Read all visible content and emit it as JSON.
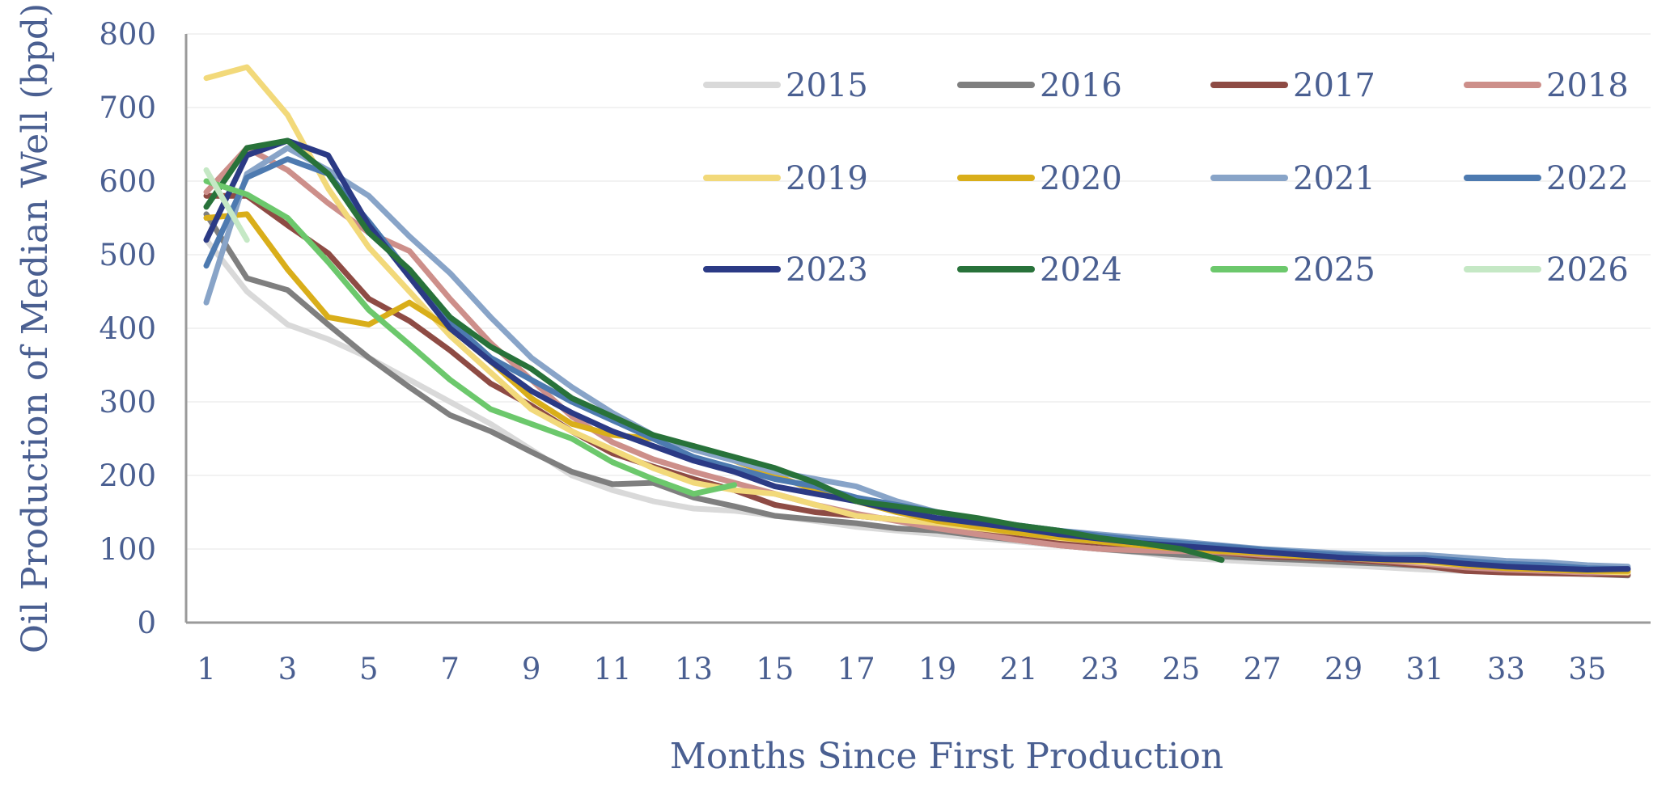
{
  "chart_data": {
    "type": "line",
    "xlabel": "Months Since First Production",
    "ylabel": "Oil Production of Median Well (bpd)",
    "xlim": [
      1,
      36
    ],
    "ylim": [
      0,
      800
    ],
    "x_ticks": [
      1,
      3,
      5,
      7,
      9,
      11,
      13,
      15,
      17,
      19,
      21,
      23,
      25,
      27,
      29,
      31,
      33,
      35
    ],
    "y_ticks": [
      0,
      100,
      200,
      300,
      400,
      500,
      600,
      700,
      800
    ],
    "grid": "horizontal",
    "legend_position": "top-right",
    "series": [
      {
        "name": "2015",
        "color": "#d9d9d9",
        "values": [
          520,
          450,
          405,
          385,
          360,
          330,
          300,
          270,
          235,
          200,
          180,
          165,
          155,
          152,
          145,
          138,
          130,
          125,
          120,
          115,
          110,
          105,
          100,
          95,
          88,
          85,
          82,
          80,
          78,
          75,
          72,
          70,
          68,
          67,
          66,
          65
        ]
      },
      {
        "name": "2016",
        "color": "#7f7f7f",
        "values": [
          555,
          468,
          452,
          405,
          360,
          320,
          282,
          260,
          232,
          205,
          188,
          190,
          170,
          158,
          145,
          140,
          135,
          128,
          125,
          118,
          112,
          105,
          100,
          96,
          92,
          90,
          87,
          85,
          82,
          80,
          77,
          72,
          70,
          68,
          66,
          64
        ]
      },
      {
        "name": "2017",
        "color": "#8e4b44",
        "values": [
          580,
          580,
          540,
          502,
          440,
          410,
          370,
          325,
          295,
          260,
          230,
          212,
          195,
          180,
          160,
          150,
          145,
          140,
          132,
          125,
          118,
          112,
          108,
          104,
          98,
          95,
          90,
          88,
          86,
          82,
          77,
          70,
          68,
          67,
          66,
          65
        ]
      },
      {
        "name": "2018",
        "color": "#cd8f8a",
        "values": [
          585,
          645,
          615,
          570,
          530,
          505,
          440,
          380,
          330,
          280,
          245,
          222,
          205,
          190,
          175,
          160,
          148,
          138,
          128,
          120,
          112,
          105,
          100,
          98,
          97,
          96,
          92,
          90,
          88,
          84,
          80,
          75,
          72,
          70,
          68,
          68
        ]
      },
      {
        "name": "2019",
        "color": "#f2d97a",
        "values": [
          740,
          755,
          690,
          590,
          510,
          450,
          390,
          340,
          290,
          260,
          235,
          210,
          190,
          180,
          175,
          160,
          145,
          140,
          135,
          128,
          122,
          115,
          110,
          106,
          102,
          98,
          95,
          92,
          88,
          86,
          82,
          78,
          75,
          72,
          70,
          68
        ]
      },
      {
        "name": "2020",
        "color": "#d9ae1a",
        "values": [
          550,
          555,
          480,
          415,
          405,
          435,
          400,
          355,
          305,
          270,
          255,
          250,
          240,
          220,
          200,
          180,
          165,
          150,
          138,
          130,
          122,
          116,
          110,
          105,
          100,
          97,
          94,
          90,
          88,
          85,
          84,
          78,
          74,
          72,
          70,
          70
        ]
      },
      {
        "name": "2021",
        "color": "#88a4c8",
        "values": [
          435,
          610,
          645,
          615,
          580,
          525,
          475,
          415,
          360,
          320,
          285,
          255,
          235,
          220,
          205,
          195,
          185,
          165,
          150,
          140,
          132,
          125,
          120,
          115,
          110,
          105,
          100,
          97,
          94,
          92,
          92,
          88,
          84,
          82,
          78,
          76
        ]
      },
      {
        "name": "2022",
        "color": "#4d7ab0",
        "values": [
          485,
          605,
          630,
          610,
          545,
          475,
          410,
          360,
          330,
          300,
          275,
          250,
          225,
          210,
          195,
          185,
          170,
          160,
          150,
          140,
          132,
          125,
          118,
          112,
          108,
          104,
          99,
          95,
          92,
          88,
          88,
          84,
          80,
          78,
          74,
          73
        ]
      },
      {
        "name": "2023",
        "color": "#2b3a85",
        "values": [
          520,
          635,
          655,
          635,
          540,
          470,
          400,
          355,
          315,
          285,
          260,
          240,
          220,
          205,
          185,
          175,
          165,
          152,
          142,
          135,
          128,
          120,
          114,
          108,
          104,
          100,
          96,
          92,
          88,
          86,
          85,
          80,
          76,
          74,
          72,
          73
        ]
      },
      {
        "name": "2024",
        "color": "#28723a",
        "values": [
          565,
          645,
          655,
          610,
          530,
          480,
          415,
          375,
          345,
          305,
          280,
          255,
          240,
          225,
          210,
          190,
          165,
          158,
          150,
          142,
          132,
          125,
          115,
          108,
          100,
          85
        ]
      },
      {
        "name": "2025",
        "color": "#6cc86c",
        "values": [
          600,
          582,
          550,
          490,
          425,
          378,
          330,
          290,
          270,
          250,
          218,
          195,
          175,
          187
        ]
      },
      {
        "name": "2026",
        "color": "#c5e8c5",
        "values": [
          615,
          520
        ]
      }
    ]
  }
}
